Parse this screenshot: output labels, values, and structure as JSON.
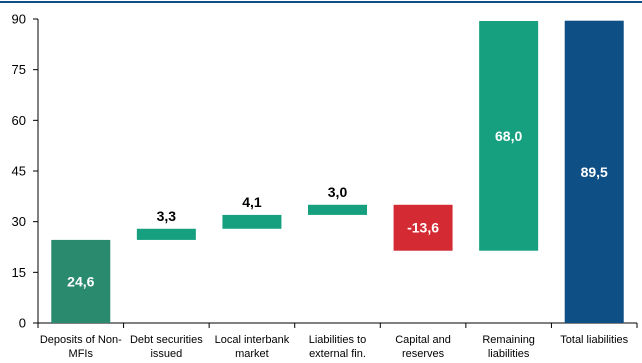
{
  "chart_data": {
    "type": "bar",
    "subtype": "waterfall",
    "title": "",
    "xlabel": "",
    "ylabel": "",
    "ylim": [
      0,
      90
    ],
    "yticks": [
      0,
      15,
      30,
      45,
      60,
      75,
      90
    ],
    "grid": false,
    "top_rule": true,
    "categories": [
      [
        "Deposits of Non-",
        "MFIs"
      ],
      [
        "Debt securities",
        "issued"
      ],
      [
        "Local interbank",
        "market"
      ],
      [
        "Liabilities to",
        "external fin."
      ],
      [
        "Capital and",
        "reserves"
      ],
      [
        "Remaining",
        "liabilities"
      ],
      [
        "Total liabilities"
      ]
    ],
    "bars": [
      {
        "start": 0,
        "end": 24.6,
        "label": "24,6",
        "color": "#2a8a6e",
        "label_color": "#ffffff",
        "label_pos": "inside"
      },
      {
        "start": 24.6,
        "end": 27.9,
        "label": "3,3",
        "color": "#16a07f",
        "label_color": "#000000",
        "label_pos": "above"
      },
      {
        "start": 27.9,
        "end": 32.0,
        "label": "4,1",
        "color": "#16a07f",
        "label_color": "#000000",
        "label_pos": "above"
      },
      {
        "start": 32.0,
        "end": 35.0,
        "label": "3,0",
        "color": "#16a07f",
        "label_color": "#000000",
        "label_pos": "above"
      },
      {
        "start": 35.0,
        "end": 21.4,
        "label": "-13,6",
        "color": "#d42a34",
        "label_color": "#ffffff",
        "label_pos": "inside"
      },
      {
        "start": 21.4,
        "end": 89.4,
        "label": "68,0",
        "color": "#16a07f",
        "label_color": "#ffffff",
        "label_pos": "inside"
      },
      {
        "start": 0,
        "end": 89.5,
        "label": "89,5",
        "color": "#0e4f86",
        "label_color": "#ffffff",
        "label_pos": "inside"
      }
    ],
    "colors": {
      "axis": "#000000",
      "top_rule": "#0e4f86"
    }
  }
}
